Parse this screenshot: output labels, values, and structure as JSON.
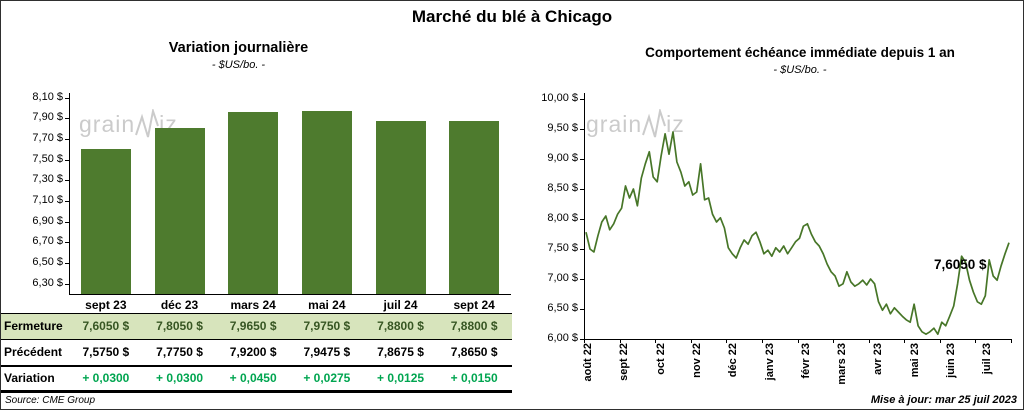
{
  "page": {
    "main_title": "Marché du blé à Chicago",
    "source": "Source: CME Group",
    "updated": "Mise à jour: mar 25 juil 2023",
    "watermark_pre": "grain",
    "watermark_post": "iz"
  },
  "colors": {
    "bar": "#4e7b2e",
    "line": "#477628",
    "fermeture_bg": "#d7e4bc",
    "fermeture_text": "#375623",
    "variation_green": "#00a550",
    "watermark": "#cbcbcb"
  },
  "chart_data": [
    {
      "type": "bar",
      "title": "Variation journalière",
      "subtitle": "- $US/bo. -",
      "categories": [
        "sept 23",
        "déc 23",
        "mars 24",
        "mai 24",
        "juil 24",
        "sept 24"
      ],
      "values": [
        7.605,
        7.805,
        7.965,
        7.975,
        7.88,
        7.88
      ],
      "ylim": [
        6.2,
        8.15
      ],
      "grid": false,
      "legend": false,
      "yticks": [
        {
          "v": 8.1,
          "label": "8,10 $"
        },
        {
          "v": 7.9,
          "label": "7,90 $"
        },
        {
          "v": 7.7,
          "label": "7,70 $"
        },
        {
          "v": 7.5,
          "label": "7,50 $"
        },
        {
          "v": 7.3,
          "label": "7,30 $"
        },
        {
          "v": 7.1,
          "label": "7,10 $"
        },
        {
          "v": 6.9,
          "label": "6,90 $"
        },
        {
          "v": 6.7,
          "label": "6,70 $"
        },
        {
          "v": 6.5,
          "label": "6,50 $"
        },
        {
          "v": 6.3,
          "label": "6,30 $"
        }
      ]
    },
    {
      "type": "line",
      "title": "Comportement échéance immédiate depuis 1 an",
      "subtitle": "- $US/bo. -",
      "x_labels": [
        "août 22",
        "sept 22",
        "oct 22",
        "nov 22",
        "déc 22",
        "janv 23",
        "févr 23",
        "mars 23",
        "avr 23",
        "mai 23",
        "juin 23",
        "juil 23"
      ],
      "ylim": [
        6.0,
        10.0
      ],
      "grid": false,
      "legend": false,
      "yticks": [
        {
          "v": 10.0,
          "label": "10,00 $"
        },
        {
          "v": 9.5,
          "label": "9,50 $"
        },
        {
          "v": 9.0,
          "label": "9,00 $"
        },
        {
          "v": 8.5,
          "label": "8,50 $"
        },
        {
          "v": 8.0,
          "label": "8,00 $"
        },
        {
          "v": 7.5,
          "label": "7,50 $"
        },
        {
          "v": 7.0,
          "label": "7,00 $"
        },
        {
          "v": 6.5,
          "label": "6,50 $"
        },
        {
          "v": 6.0,
          "label": "6,00 $"
        }
      ],
      "values": [
        7.78,
        7.5,
        7.45,
        7.72,
        7.95,
        8.05,
        7.82,
        7.92,
        8.08,
        8.18,
        8.55,
        8.35,
        8.5,
        8.22,
        8.68,
        8.92,
        9.12,
        8.7,
        8.62,
        9.05,
        9.42,
        9.08,
        9.45,
        8.95,
        8.78,
        8.55,
        8.62,
        8.4,
        8.45,
        8.92,
        8.32,
        8.35,
        8.08,
        7.95,
        8.02,
        7.85,
        7.52,
        7.42,
        7.35,
        7.52,
        7.65,
        7.58,
        7.72,
        7.78,
        7.62,
        7.42,
        7.48,
        7.38,
        7.52,
        7.45,
        7.55,
        7.42,
        7.52,
        7.62,
        7.68,
        7.88,
        7.92,
        7.75,
        7.62,
        7.55,
        7.42,
        7.25,
        7.12,
        7.05,
        6.88,
        6.92,
        7.12,
        6.95,
        6.88,
        6.92,
        6.98,
        6.9,
        7.0,
        6.92,
        6.62,
        6.48,
        6.58,
        6.42,
        6.52,
        6.45,
        6.38,
        6.32,
        6.28,
        6.58,
        6.22,
        6.12,
        6.08,
        6.12,
        6.18,
        6.08,
        6.28,
        6.22,
        6.38,
        6.55,
        6.92,
        7.38,
        7.28,
        6.98,
        6.78,
        6.62,
        6.58,
        6.72,
        7.32,
        7.05,
        6.98,
        7.22,
        7.42,
        7.605
      ],
      "annotation": {
        "text": "7,6050 $",
        "value": 7.605
      }
    }
  ],
  "table": {
    "col_headers": [
      "sept 23",
      "déc 23",
      "mars 24",
      "mai 24",
      "juil 24",
      "sept 24"
    ],
    "rows": [
      {
        "label": "Fermeture",
        "values": [
          "7,6050 $",
          "7,8050 $",
          "7,9650 $",
          "7,9750 $",
          "7,8800 $",
          "7,8800 $"
        ]
      },
      {
        "label": "Précédent",
        "values": [
          "7,5750 $",
          "7,7750 $",
          "7,9200 $",
          "7,9475 $",
          "7,8675 $",
          "7,8650 $"
        ]
      },
      {
        "label": "Variation",
        "values": [
          "+ 0,0300",
          "+ 0,0300",
          "+ 0,0450",
          "+ 0,0275",
          "+ 0,0125",
          "+ 0,0150"
        ]
      }
    ]
  }
}
